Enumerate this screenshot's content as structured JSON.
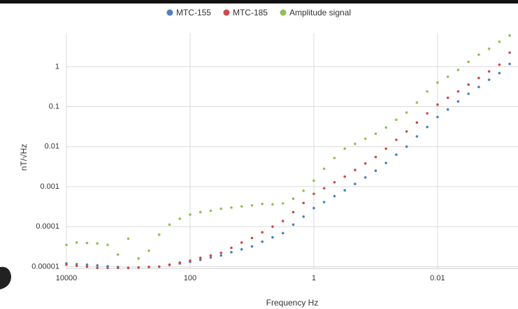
{
  "chart_data": {
    "type": "scatter",
    "xlabel": "Frequency Hz",
    "ylabel": "nT/√Hz",
    "xscale": "log",
    "yscale": "log",
    "grid": true,
    "legend": "top",
    "xlim": [
      10000,
      0.0005
    ],
    "ylim": [
      9e-06,
      7
    ],
    "xticks": [
      10000,
      100,
      1,
      0.01
    ],
    "yticks": [
      1e-05,
      0.0001,
      0.001,
      0.01,
      0.1,
      1
    ],
    "x": [
      10000,
      6813,
      4642,
      3162,
      2154,
      1468,
      1000,
      681.3,
      464.2,
      316.2,
      215.4,
      146.8,
      100,
      68.13,
      46.42,
      31.62,
      21.54,
      14.68,
      10,
      6.813,
      4.642,
      3.162,
      2.154,
      1.468,
      1,
      0.6813,
      0.4642,
      0.3162,
      0.2154,
      0.1468,
      0.1,
      0.06813,
      0.04642,
      0.03162,
      0.02154,
      0.01468,
      0.01,
      0.006813,
      0.004642,
      0.003162,
      0.002154,
      0.001468,
      0.001,
      0.0006813
    ],
    "series": [
      {
        "name": "MTC-155",
        "color": "#4e7fc0",
        "values": [
          1.2e-05,
          1.15e-05,
          1.12e-05,
          1.07e-05,
          1.02e-05,
          9.8e-06,
          9.3e-06,
          9.5e-06,
          9.8e-06,
          1e-05,
          1.1e-05,
          1.2e-05,
          1.32e-05,
          1.48e-05,
          1.7e-05,
          1.9e-05,
          2.3e-05,
          2.7e-05,
          3.2e-05,
          4.2e-05,
          5.4e-05,
          6.9e-05,
          0.000112,
          0.000178,
          0.00029,
          0.00041,
          0.00058,
          0.00081,
          0.00117,
          0.0017,
          0.0025,
          0.0039,
          0.0063,
          0.01,
          0.018,
          0.031,
          0.055,
          0.085,
          0.135,
          0.21,
          0.31,
          0.47,
          0.69,
          1.17
        ]
      },
      {
        "name": "MTC-185",
        "color": "#cc4b4b",
        "values": [
          1.12e-05,
          1.05e-05,
          1e-05,
          9.3e-06,
          9.3e-06,
          9.3e-06,
          9.3e-06,
          9.5e-06,
          9.8e-06,
          1e-05,
          1.12e-05,
          1.26e-05,
          1.41e-05,
          1.66e-05,
          1.9e-05,
          2.2e-05,
          2.95e-05,
          4e-05,
          5.2e-05,
          7.2e-05,
          0.0001,
          0.000138,
          0.00023,
          0.00039,
          0.00066,
          0.00091,
          0.00129,
          0.00178,
          0.0026,
          0.0038,
          0.0055,
          0.0089,
          0.0148,
          0.024,
          0.04,
          0.068,
          0.112,
          0.166,
          0.24,
          0.355,
          0.52,
          0.76,
          1.12,
          2.24
        ]
      },
      {
        "name": "Amplitude signal",
        "color": "#93bf55",
        "values": [
          3.5e-05,
          4e-05,
          3.9e-05,
          3.8e-05,
          3.5e-05,
          2e-05,
          5e-05,
          1.6e-05,
          2.5e-05,
          6.3e-05,
          0.000112,
          0.000158,
          0.0002,
          0.00023,
          0.00025,
          0.00028,
          0.0003,
          0.00032,
          0.00034,
          0.00037,
          0.00036,
          0.00038,
          0.0005,
          0.00079,
          0.00141,
          0.0028,
          0.0052,
          0.0089,
          0.0117,
          0.0158,
          0.021,
          0.03,
          0.047,
          0.071,
          0.126,
          0.24,
          0.4,
          0.56,
          0.83,
          1.32,
          2.0,
          2.8,
          4.2,
          6.0
        ]
      }
    ]
  }
}
